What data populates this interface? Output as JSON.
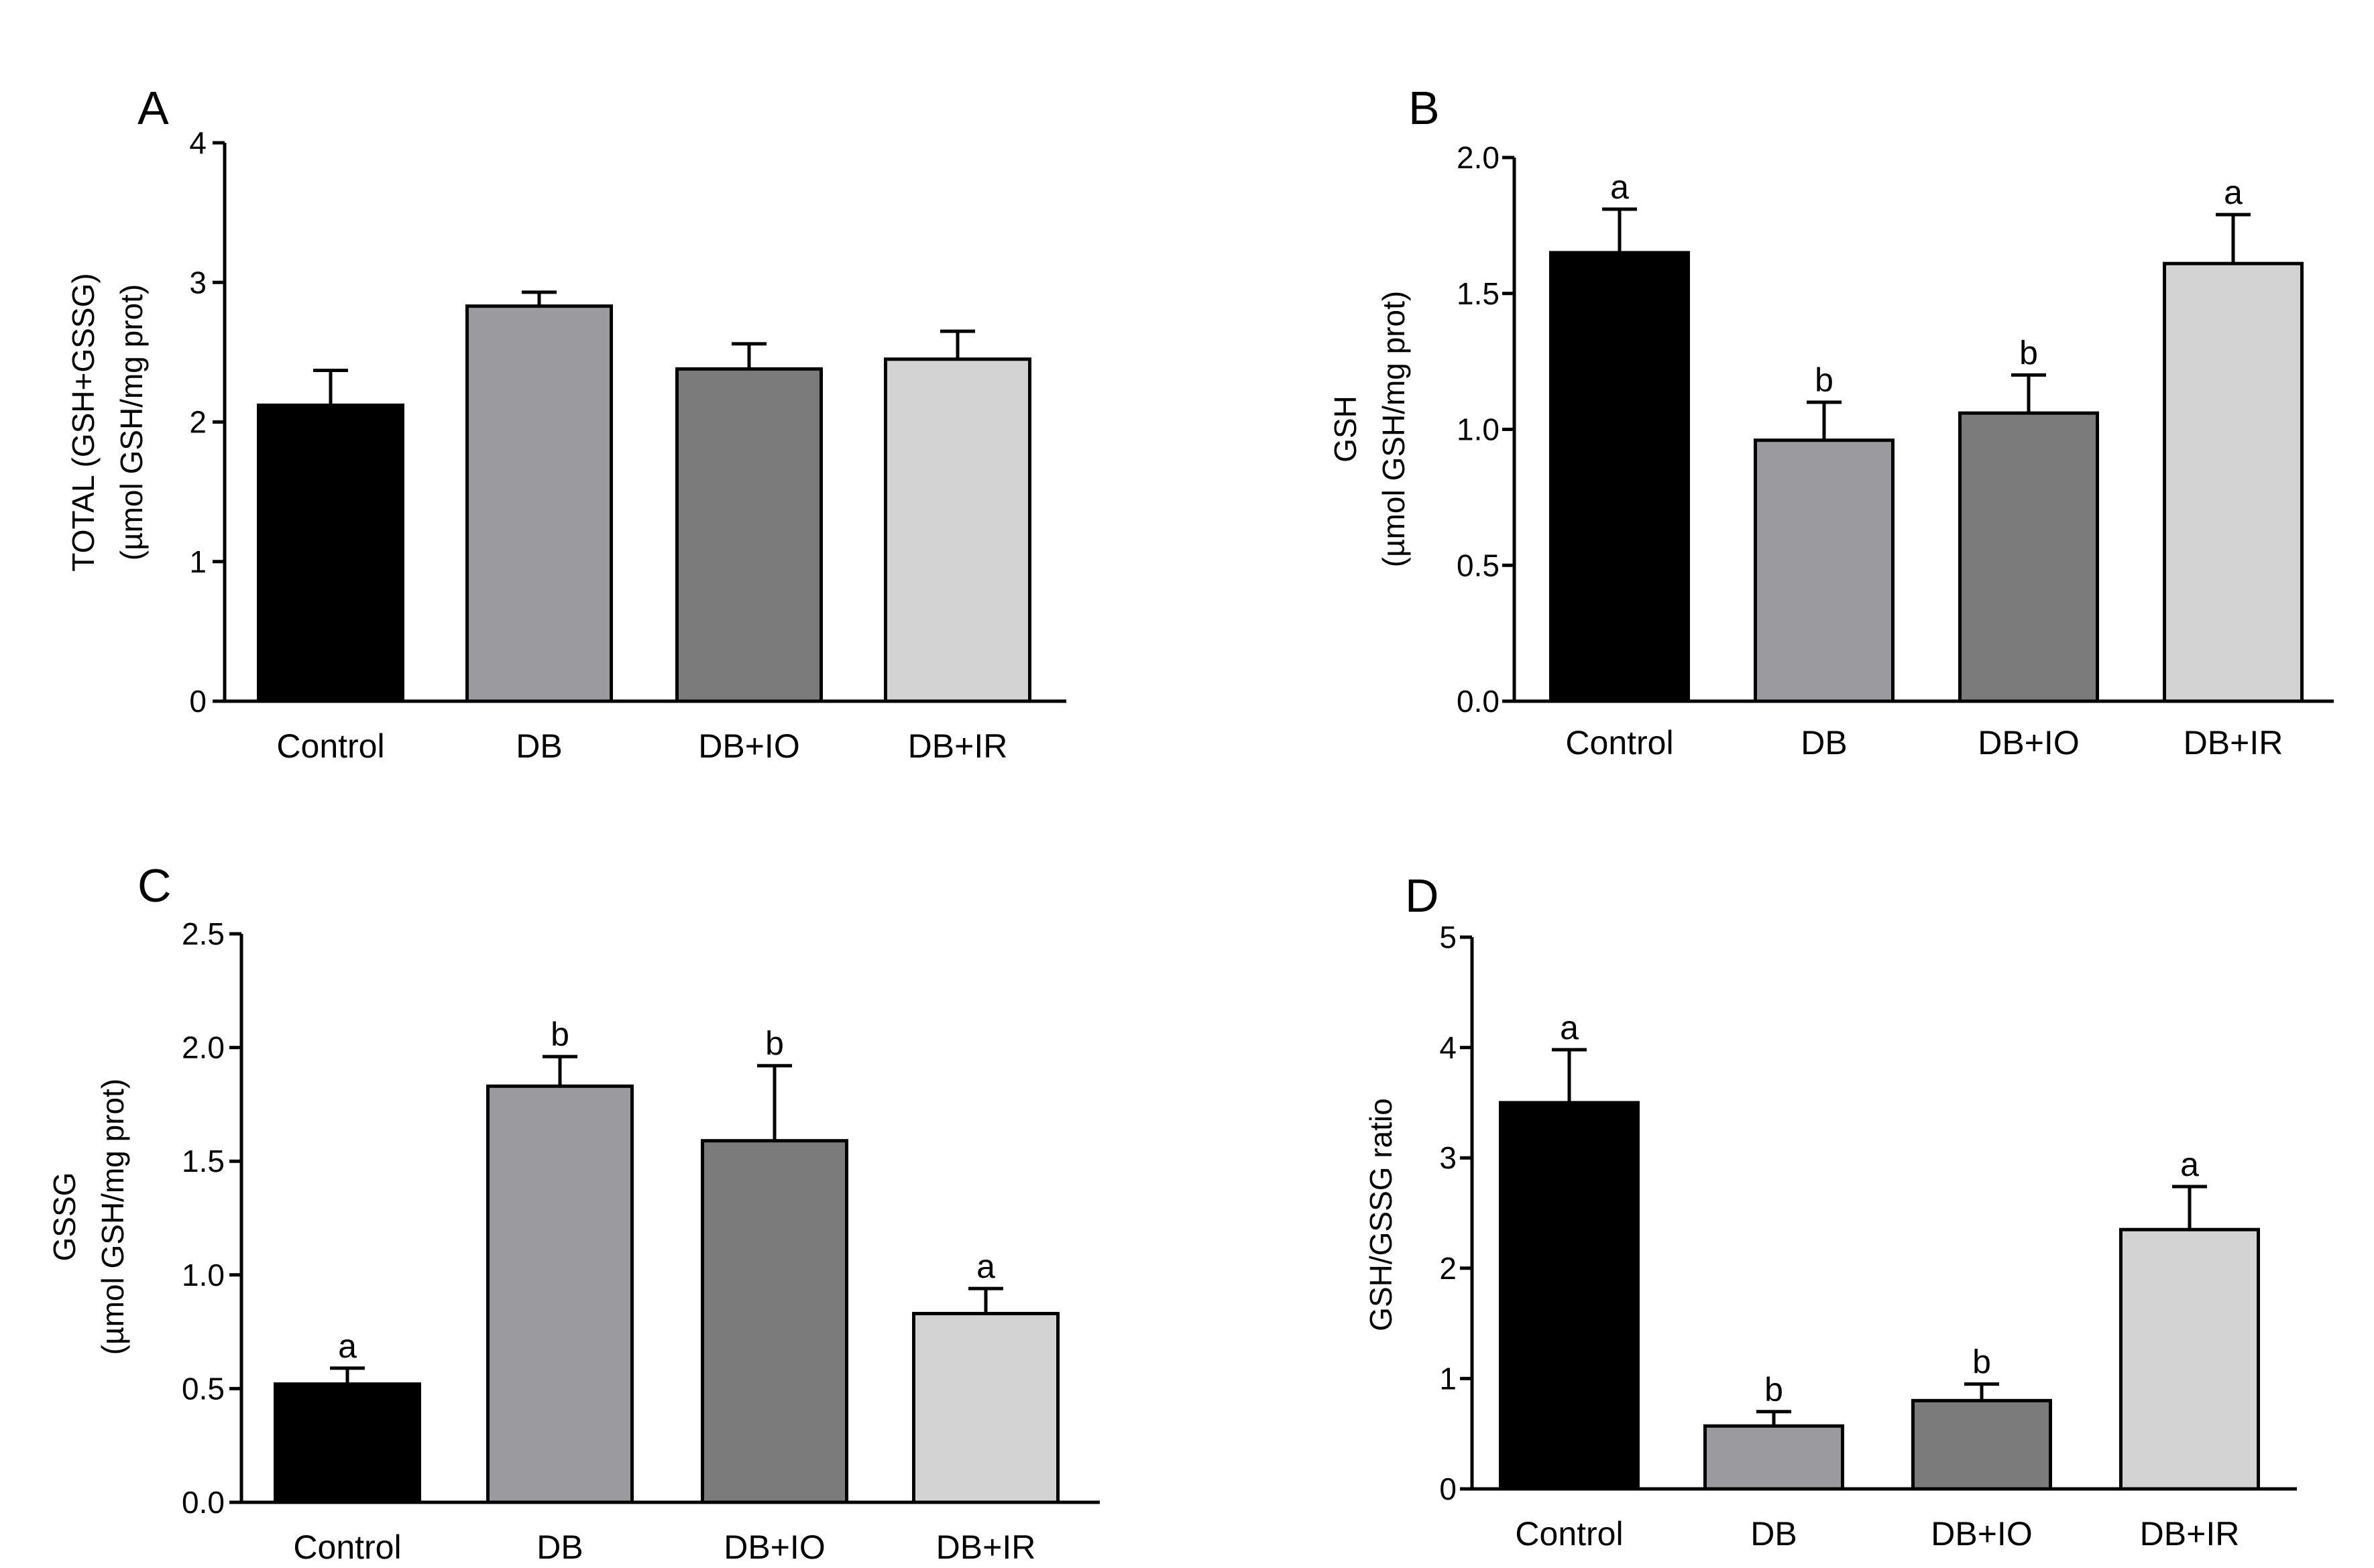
{
  "figure": {
    "colors": {
      "axis": "#000000",
      "bar_stroke": "#000000",
      "bar_fills": [
        "#000000",
        "#9b9a9e",
        "#7b7b7b",
        "#d3d3d3"
      ]
    }
  },
  "chart_data": [
    {
      "panel": "A",
      "type": "bar",
      "categories": [
        "Control",
        "DB",
        "DB+IO",
        "DB+IR"
      ],
      "values": [
        2.12,
        2.83,
        2.38,
        2.45
      ],
      "errors": [
        0.25,
        0.1,
        0.18,
        0.2
      ],
      "significance": [
        "",
        "",
        "",
        ""
      ],
      "ylabel_lines": [
        "TOTAL (GSH+GSSG)",
        "(µmol GSH/mg prot)"
      ],
      "ylim": [
        0,
        4
      ],
      "yticks": [
        0,
        1,
        2,
        3,
        4
      ],
      "ytick_labels": [
        "0",
        "1",
        "2",
        "3",
        "4"
      ]
    },
    {
      "panel": "B",
      "type": "bar",
      "categories": [
        "Control",
        "DB",
        "DB+IO",
        "DB+IR"
      ],
      "values": [
        1.65,
        0.96,
        1.06,
        1.61
      ],
      "errors": [
        0.16,
        0.14,
        0.14,
        0.18
      ],
      "significance": [
        "a",
        "b",
        "b",
        "a"
      ],
      "ylabel_lines": [
        "GSH",
        "(µmol GSH/mg prot)"
      ],
      "ylim": [
        0,
        2.0
      ],
      "yticks": [
        0,
        0.5,
        1.0,
        1.5,
        2.0
      ],
      "ytick_labels": [
        "0.0",
        "0.5",
        "1.0",
        "1.5",
        "2.0"
      ]
    },
    {
      "panel": "C",
      "type": "bar",
      "categories": [
        "Control",
        "DB",
        "DB+IO",
        "DB+IR"
      ],
      "values": [
        0.52,
        1.83,
        1.59,
        0.83
      ],
      "errors": [
        0.07,
        0.13,
        0.33,
        0.11
      ],
      "significance": [
        "a",
        "b",
        "b",
        "a"
      ],
      "ylabel_lines": [
        "GSSG",
        "(µmol GSH/mg prot)"
      ],
      "ylim": [
        0,
        2.5
      ],
      "yticks": [
        0,
        0.5,
        1.0,
        1.5,
        2.0,
        2.5
      ],
      "ytick_labels": [
        "0.0",
        "0.5",
        "1.0",
        "1.5",
        "2.0",
        "2.5"
      ]
    },
    {
      "panel": "D",
      "type": "bar",
      "categories": [
        "Control",
        "DB",
        "DB+IO",
        "DB+IR"
      ],
      "values": [
        3.5,
        0.57,
        0.8,
        2.35
      ],
      "errors": [
        0.48,
        0.13,
        0.15,
        0.39
      ],
      "significance": [
        "a",
        "b",
        "b",
        "a"
      ],
      "ylabel_lines": [
        "GSH/GSSG ratio"
      ],
      "ylim": [
        0,
        5
      ],
      "yticks": [
        0,
        1,
        2,
        3,
        4,
        5
      ],
      "ytick_labels": [
        "0",
        "1",
        "2",
        "3",
        "4",
        "5"
      ]
    }
  ]
}
